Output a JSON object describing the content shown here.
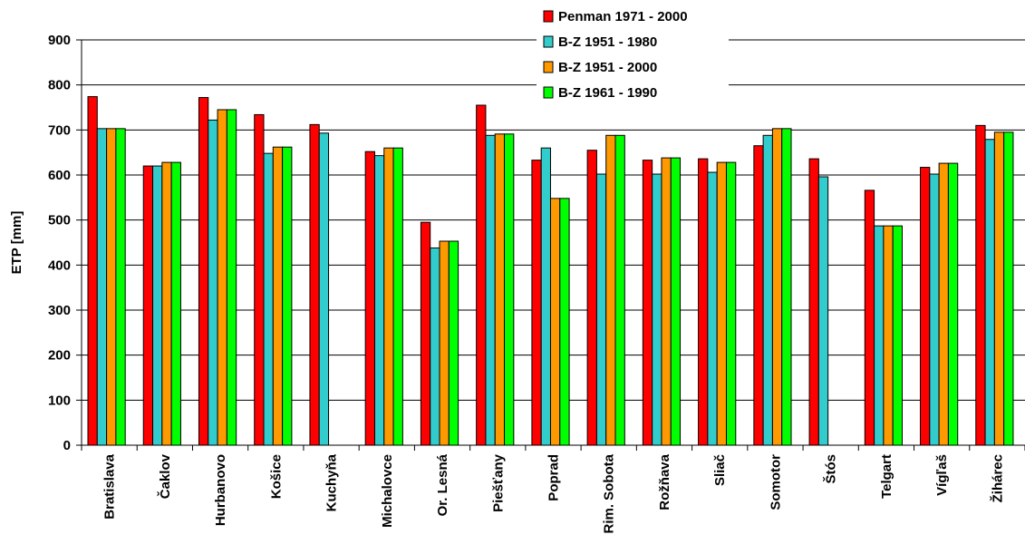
{
  "chart_data": {
    "type": "bar",
    "title": "",
    "xlabel": "",
    "ylabel": "ETP [mm]",
    "ylim": [
      0,
      900
    ],
    "yticks": [
      0,
      100,
      200,
      300,
      400,
      500,
      600,
      700,
      800,
      900
    ],
    "grid": true,
    "legend_position": "top-right",
    "categories": [
      "Bratislava",
      "Čaklov",
      "Hurbanovo",
      "Košice",
      "Kuchyňa",
      "Michalovce",
      "Or. Lesná",
      "Piešťany",
      "Poprad",
      "Rim. Sobota",
      "Rožňava",
      "Sliač",
      "Somotor",
      "Štós",
      "Telgart",
      "Vígľaš",
      "Žihárec"
    ],
    "series": [
      {
        "name": "Penman 1971 - 2000",
        "color": "#ff0000",
        "values": [
          774,
          620,
          772,
          734,
          712,
          652,
          495,
          755,
          633,
          655,
          633,
          636,
          665,
          636,
          566,
          617,
          710
        ]
      },
      {
        "name": "B-Z 1951 - 1980",
        "color": "#33cccc",
        "values": [
          703,
          620,
          722,
          648,
          693,
          643,
          438,
          688,
          660,
          602,
          602,
          606,
          688,
          596,
          487,
          602,
          679
        ]
      },
      {
        "name": "B-Z 1951 - 2000",
        "color": "#ff9900",
        "values": [
          703,
          628,
          745,
          662,
          null,
          660,
          453,
          691,
          548,
          688,
          638,
          628,
          703,
          null,
          487,
          626,
          695
        ]
      },
      {
        "name": "B-Z 1961 - 1990",
        "color": "#00ff00",
        "values": [
          703,
          628,
          745,
          662,
          null,
          660,
          453,
          691,
          548,
          688,
          638,
          628,
          703,
          null,
          487,
          626,
          695
        ]
      }
    ]
  }
}
